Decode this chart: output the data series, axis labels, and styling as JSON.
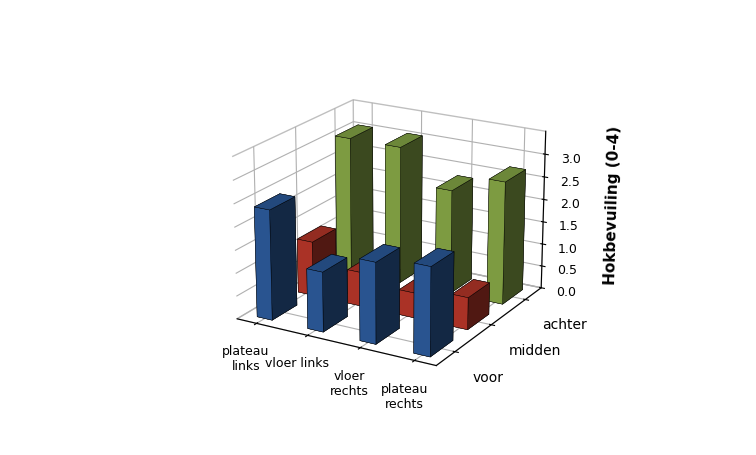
{
  "title": "",
  "ylabel": "Hokbevuiling (0-4)",
  "groups": [
    "plateau\nlinks",
    "vloer links",
    "vloer\nrechts",
    "plateau\nrechts"
  ],
  "series_labels": [
    "voor",
    "midden",
    "achter"
  ],
  "series_colors": [
    "#2E5FA3",
    "#C0392B",
    "#8DB04A"
  ],
  "values": [
    [
      2.4,
      1.2,
      3.05
    ],
    [
      1.3,
      0.75,
      3.05
    ],
    [
      1.75,
      0.55,
      2.3
    ],
    [
      1.9,
      0.7,
      2.7
    ]
  ],
  "ylim": [
    0,
    3.5
  ],
  "yticks": [
    0,
    0.5,
    1.0,
    1.5,
    2.0,
    2.5,
    3.0
  ],
  "background_color": "#ffffff",
  "elev": 20,
  "azim": -60
}
